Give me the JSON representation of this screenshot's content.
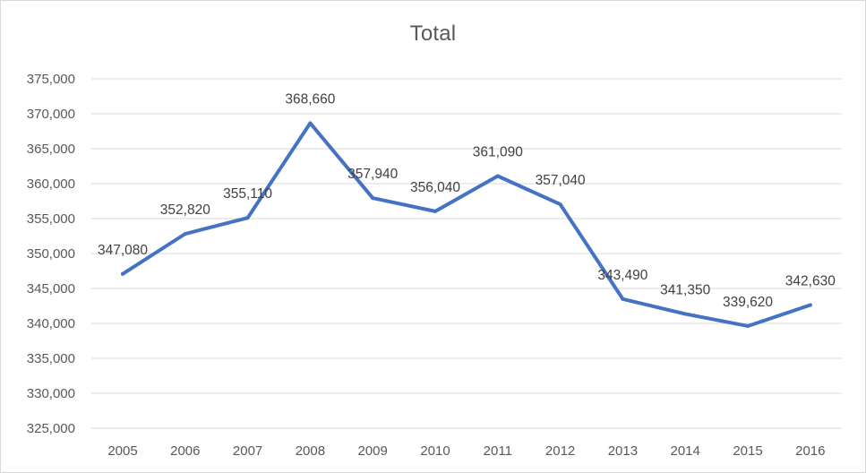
{
  "chart_data": {
    "type": "line",
    "title": "Total",
    "xlabel": "",
    "ylabel": "",
    "categories": [
      "2005",
      "2006",
      "2007",
      "2008",
      "2009",
      "2010",
      "2011",
      "2012",
      "2013",
      "2014",
      "2015",
      "2016"
    ],
    "series": [
      {
        "values": [
          347080,
          352820,
          355110,
          368660,
          357940,
          356040,
          361090,
          357040,
          343490,
          341350,
          339620,
          342630
        ],
        "data_labels": [
          "347,080",
          "352,820",
          "355,110",
          "368,660",
          "357,940",
          "356,040",
          "361,090",
          "357,040",
          "343,490",
          "341,350",
          "339,620",
          "342,630"
        ],
        "color": "#4472c4"
      }
    ],
    "ylim": [
      325000,
      375000
    ],
    "y_ticks": [
      325000,
      330000,
      335000,
      340000,
      345000,
      350000,
      355000,
      360000,
      365000,
      370000,
      375000
    ],
    "y_tick_labels": [
      "325,000",
      "330,000",
      "335,000",
      "340,000",
      "345,000",
      "350,000",
      "355,000",
      "360,000",
      "365,000",
      "370,000",
      "375,000"
    ],
    "grid": true,
    "legend": "none",
    "colors": {
      "line": "#4472c4",
      "grid": "#d9d9d9",
      "text": "#595959"
    }
  }
}
